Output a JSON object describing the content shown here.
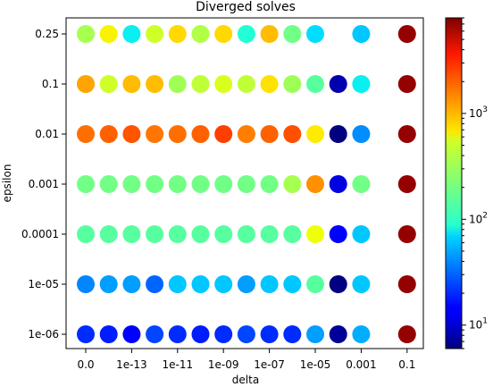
{
  "chart_data": {
    "type": "scatter",
    "title": "Diverged solves",
    "xlabel": "delta",
    "ylabel": "epsilon",
    "x_positions": 15,
    "x_tick_labels": [
      "0.0",
      "1e-13",
      "1e-11",
      "1e-09",
      "1e-07",
      "1e-05",
      "0.001",
      "0.1"
    ],
    "y_categories": [
      "1e-06",
      "1e-05",
      "0.0001",
      "0.001",
      "0.01",
      "0.1",
      "0.25"
    ],
    "grid": false,
    "color_scale": "log",
    "colormap": "jet",
    "colorbar": {
      "min": 6,
      "max": 8000,
      "tick_labels": [
        "10^1",
        "10^2",
        "10^3"
      ],
      "tick_values": [
        10,
        100,
        1000
      ]
    },
    "values": [
      [
        20,
        18,
        14,
        24,
        20,
        18,
        20,
        24,
        20,
        20,
        45,
        7,
        50,
        7000
      ],
      [
        38,
        45,
        45,
        30,
        60,
        60,
        60,
        45,
        60,
        60,
        160,
        6,
        60,
        7000
      ],
      [
        160,
        160,
        160,
        160,
        160,
        160,
        160,
        160,
        160,
        160,
        600,
        14,
        60,
        7000
      ],
      [
        200,
        200,
        200,
        200,
        200,
        200,
        200,
        200,
        200,
        320,
        1400,
        11,
        200,
        7000
      ],
      [
        1800,
        2000,
        2200,
        1700,
        1800,
        2000,
        2600,
        1600,
        2000,
        2300,
        700,
        6,
        40,
        7000
      ],
      [
        1200,
        450,
        1000,
        1000,
        300,
        400,
        500,
        400,
        750,
        300,
        160,
        8,
        80,
        7000
      ],
      [
        320,
        650,
        80,
        450,
        800,
        350,
        800,
        100,
        1000,
        200,
        70,
        null,
        60,
        7000
      ]
    ],
    "value_x_index": [
      0,
      1,
      2,
      3,
      4,
      5,
      6,
      7,
      8,
      9,
      10,
      11,
      12,
      14
    ]
  }
}
